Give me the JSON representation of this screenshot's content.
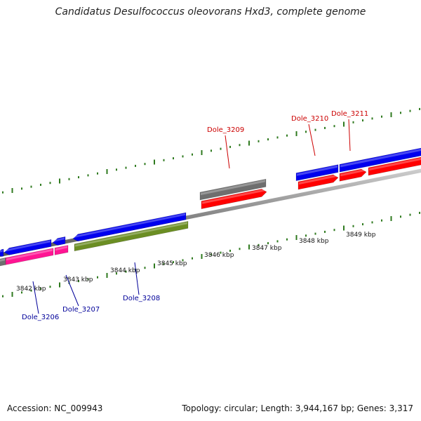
{
  "title": "Candidatus Desulfococcus oleovorans Hxd3, complete genome",
  "footer": {
    "accession": "Accession: NC_009943",
    "summary": "Topology: circular; Length: 3,944,167 bp; Genes: 3,317"
  },
  "colors": {
    "backbone": "#8a8a8a",
    "tick": "#2f7a1f",
    "forward_label": "#cc0000",
    "reverse_label": "#000099"
  },
  "kbp_labels": [
    "3842 kbp",
    "3843 kbp",
    "3844 kbp",
    "3845 kbp",
    "3846 kbp",
    "3847 kbp",
    "3848 kbp",
    "3849 kbp"
  ],
  "features": [
    {
      "strand": "forward",
      "kind": "cds",
      "color": "#ff0000"
    },
    {
      "strand": "forward",
      "kind": "cds",
      "color": "#ff0000"
    },
    {
      "strand": "forward",
      "kind": "cds",
      "color": "#ff0000"
    },
    {
      "strand": "forward",
      "kind": "cds",
      "color": "#ff0000"
    },
    {
      "strand": "forward",
      "kind": "gene",
      "color": "#6e6e6e"
    },
    {
      "strand": "forward",
      "kind": "gene",
      "color": "#0000ee"
    },
    {
      "strand": "forward",
      "kind": "gene",
      "color": "#0000ee"
    },
    {
      "strand": "reverse",
      "kind": "gene",
      "color": "#0000ee"
    },
    {
      "strand": "reverse",
      "kind": "gene",
      "color": "#0000ee"
    },
    {
      "strand": "reverse",
      "kind": "gene",
      "color": "#0000ee"
    },
    {
      "strand": "reverse",
      "kind": "gene",
      "color": "#0000ee"
    },
    {
      "strand": "reverse",
      "kind": "cds",
      "color": "#ff1493"
    },
    {
      "strand": "reverse",
      "kind": "cds",
      "color": "#ff1493"
    },
    {
      "strand": "reverse",
      "kind": "cds",
      "color": "#6b8e23"
    },
    {
      "strand": "reverse",
      "kind": "cds",
      "color": "#6e6e6e"
    }
  ],
  "gene_labels": [
    {
      "text": "Dole_3209",
      "strand": "forward"
    },
    {
      "text": "Dole_3210",
      "strand": "forward"
    },
    {
      "text": "Dole_3211",
      "strand": "forward"
    },
    {
      "text": "Dole_3206",
      "strand": "reverse"
    },
    {
      "text": "Dole_3207",
      "strand": "reverse"
    },
    {
      "text": "Dole_3208",
      "strand": "reverse"
    }
  ]
}
